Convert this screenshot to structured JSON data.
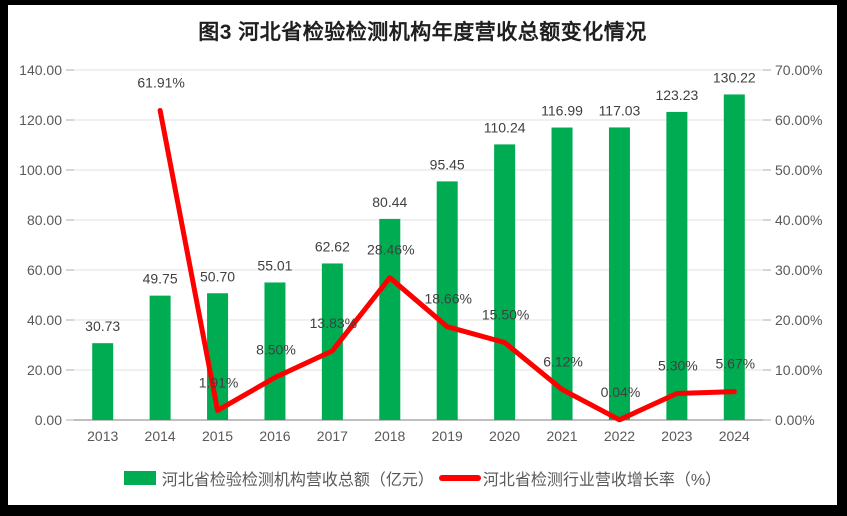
{
  "chart": {
    "title": "图3 河北省检验检测机构年度营收总额变化情况"
  },
  "chart_data": {
    "type": "combo-bar-line",
    "title": "图3 河北省检验检测机构年度营收总额变化情况",
    "categories": [
      "2013",
      "2014",
      "2015",
      "2016",
      "2017",
      "2018",
      "2019",
      "2020",
      "2021",
      "2022",
      "2023",
      "2024"
    ],
    "series": [
      {
        "name": "河北省检验检测机构营收总额（亿元）",
        "type": "bar",
        "axis": "left",
        "color": "#00AC52",
        "values": [
          30.73,
          49.75,
          50.7,
          55.01,
          62.62,
          80.44,
          95.45,
          110.24,
          116.99,
          117.03,
          123.23,
          130.22
        ],
        "labels": [
          "30.73",
          "49.75",
          "50.70",
          "55.01",
          "62.62",
          "80.44",
          "95.45",
          "110.24",
          "116.99",
          "117.03",
          "123.23",
          "130.22"
        ]
      },
      {
        "name": "河北省检测行业营收增长率（%）",
        "type": "line",
        "axis": "right",
        "color": "#FF0000",
        "values": [
          null,
          61.91,
          1.91,
          8.5,
          13.83,
          28.46,
          18.66,
          15.5,
          6.12,
          0.04,
          5.3,
          5.67
        ],
        "labels": [
          null,
          "61.91%",
          "1.91%",
          "8.50%",
          "13.83%",
          "28.46%",
          "18.66%",
          "15.50%",
          "6.12%",
          "0.04%",
          "5.30%",
          "5.67%"
        ]
      }
    ],
    "left_axis": {
      "min": 0,
      "max": 140,
      "step": 20,
      "tick_labels": [
        "0.00",
        "20.00",
        "40.00",
        "60.00",
        "80.00",
        "100.00",
        "120.00",
        "140.00"
      ]
    },
    "right_axis": {
      "min": 0,
      "max": 70,
      "step": 10,
      "tick_labels": [
        "0.00%",
        "10.00%",
        "20.00%",
        "30.00%",
        "40.00%",
        "50.00%",
        "60.00%",
        "70.00%"
      ]
    },
    "grid": true,
    "legend_position": "bottom"
  },
  "colors": {
    "bar": "#00AC52",
    "line": "#FF0000",
    "gridline": "#E6E6E6",
    "axis_line": "#BFBFBF",
    "tick": "#BFBFBF",
    "axis_text": "#595959",
    "data_label": "#404040",
    "title_text": "#1F1F1F",
    "frame": "#000000",
    "background": "#FFFFFF"
  }
}
